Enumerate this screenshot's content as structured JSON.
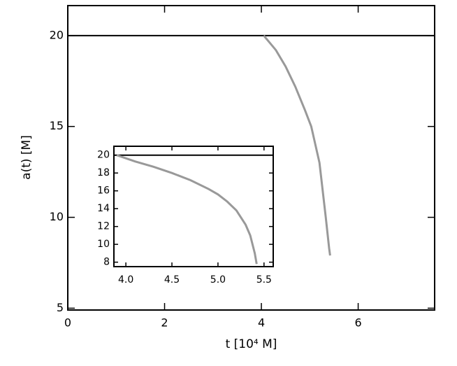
{
  "chart_data": [
    {
      "type": "line",
      "x_label": "t [10⁴ M]",
      "y_label": "a(t) [M]",
      "xlim": [
        0,
        7.58
      ],
      "ylim": [
        4.9,
        21.65
      ],
      "xticks": [
        0,
        2,
        4,
        6
      ],
      "yticks": [
        5,
        10,
        15,
        20
      ],
      "series": [
        {
          "color": "#000000",
          "x": [
            0,
            7.58
          ],
          "values": [
            20,
            20
          ]
        },
        {
          "color": "#999999",
          "x": [
            4.05,
            4.3,
            4.5,
            4.7,
            4.9,
            5.03,
            5.2,
            5.33,
            5.4,
            5.42
          ],
          "values": [
            20,
            19.2,
            18.3,
            17.2,
            15.9,
            15,
            13,
            10,
            8.3,
            7.9
          ]
        }
      ]
    },
    {
      "type": "line",
      "xlim": [
        3.87,
        5.6
      ],
      "ylim": [
        7.5,
        21
      ],
      "xticks": [
        {
          "value": 4,
          "label": "4.0"
        },
        4.5,
        {
          "value": 5,
          "label": "5.0"
        },
        5.5
      ],
      "yticks": [
        8,
        10,
        12,
        14,
        16,
        18,
        20
      ],
      "series": [
        {
          "color": "#000000",
          "x": [
            3.87,
            5.6
          ],
          "values": [
            20,
            20
          ]
        },
        {
          "color": "#999999",
          "x": [
            3.9,
            4.1,
            4.3,
            4.5,
            4.7,
            4.9,
            5.0,
            5.1,
            5.2,
            5.3,
            5.35,
            5.4,
            5.42
          ],
          "values": [
            20,
            19.3,
            18.7,
            18,
            17.2,
            16.2,
            15.6,
            14.8,
            13.8,
            12.2,
            11,
            9,
            7.8
          ]
        }
      ]
    }
  ]
}
